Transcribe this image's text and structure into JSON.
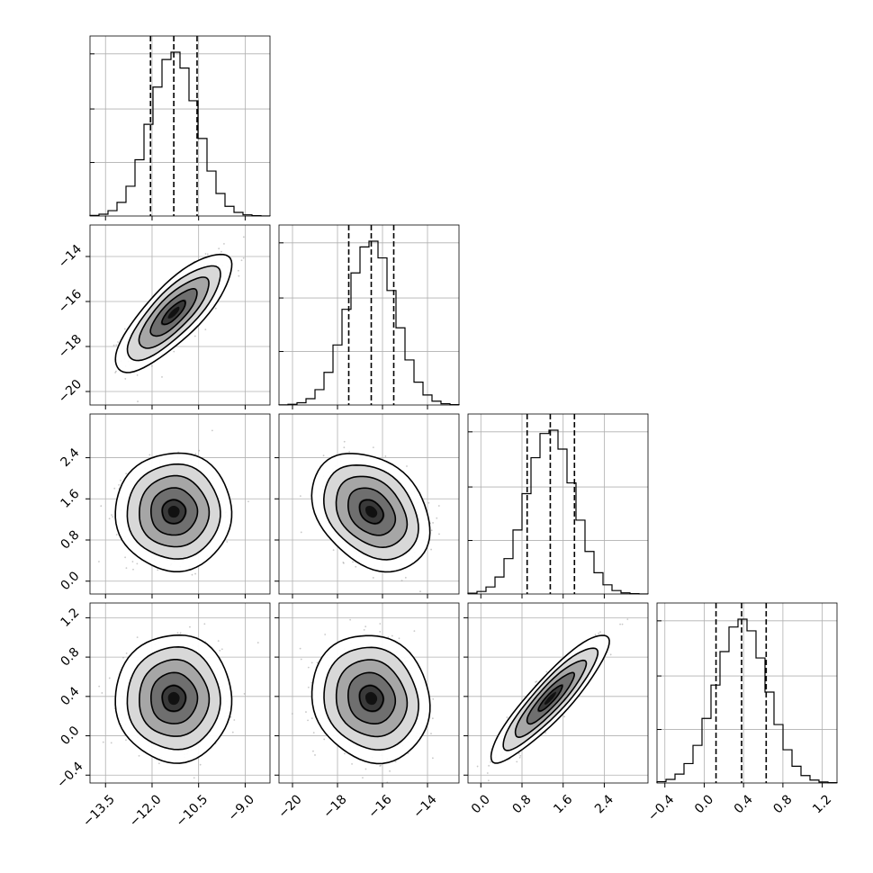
{
  "chart_data": {
    "type": "corner",
    "grid": true,
    "parameters": [
      {
        "mean": -11.3,
        "sd": 0.75,
        "q16": -12.05,
        "q50": -11.3,
        "q84": -10.55,
        "range": [
          -14.0,
          -8.2
        ],
        "ticks": [
          -13.5,
          -12.0,
          -10.5,
          -9.0
        ],
        "tick_labels": [
          "−13.5",
          "−12.0",
          "−10.5",
          "−9.0"
        ]
      },
      {
        "mean": -16.5,
        "sd": 1.05,
        "q16": -17.5,
        "q50": -16.5,
        "q84": -15.5,
        "range": [
          -20.6,
          -12.6
        ],
        "ticks": [
          -20,
          -18,
          -16,
          -14
        ],
        "tick_labels": [
          "−20",
          "−18",
          "−16",
          "−14"
        ]
      },
      {
        "mean": 1.35,
        "sd": 0.46,
        "q16": 0.9,
        "q50": 1.35,
        "q84": 1.82,
        "range": [
          -0.25,
          3.25
        ],
        "ticks": [
          0.0,
          0.8,
          1.6,
          2.4
        ],
        "tick_labels": [
          "0.0",
          "0.8",
          "1.6",
          "2.4"
        ]
      },
      {
        "mean": 0.38,
        "sd": 0.26,
        "q16": 0.12,
        "q50": 0.38,
        "q84": 0.63,
        "range": [
          -0.48,
          1.35
        ],
        "ticks": [
          -0.4,
          0.0,
          0.4,
          0.8,
          1.2
        ],
        "tick_labels": [
          "−0.4",
          "0.0",
          "0.4",
          "0.8",
          "1.2"
        ]
      }
    ],
    "correlations": {
      "0-1": 0.8,
      "0-2": 0.0,
      "0-3": 0.0,
      "1-2": -0.3,
      "1-3": -0.1,
      "2-3": 0.9
    }
  }
}
